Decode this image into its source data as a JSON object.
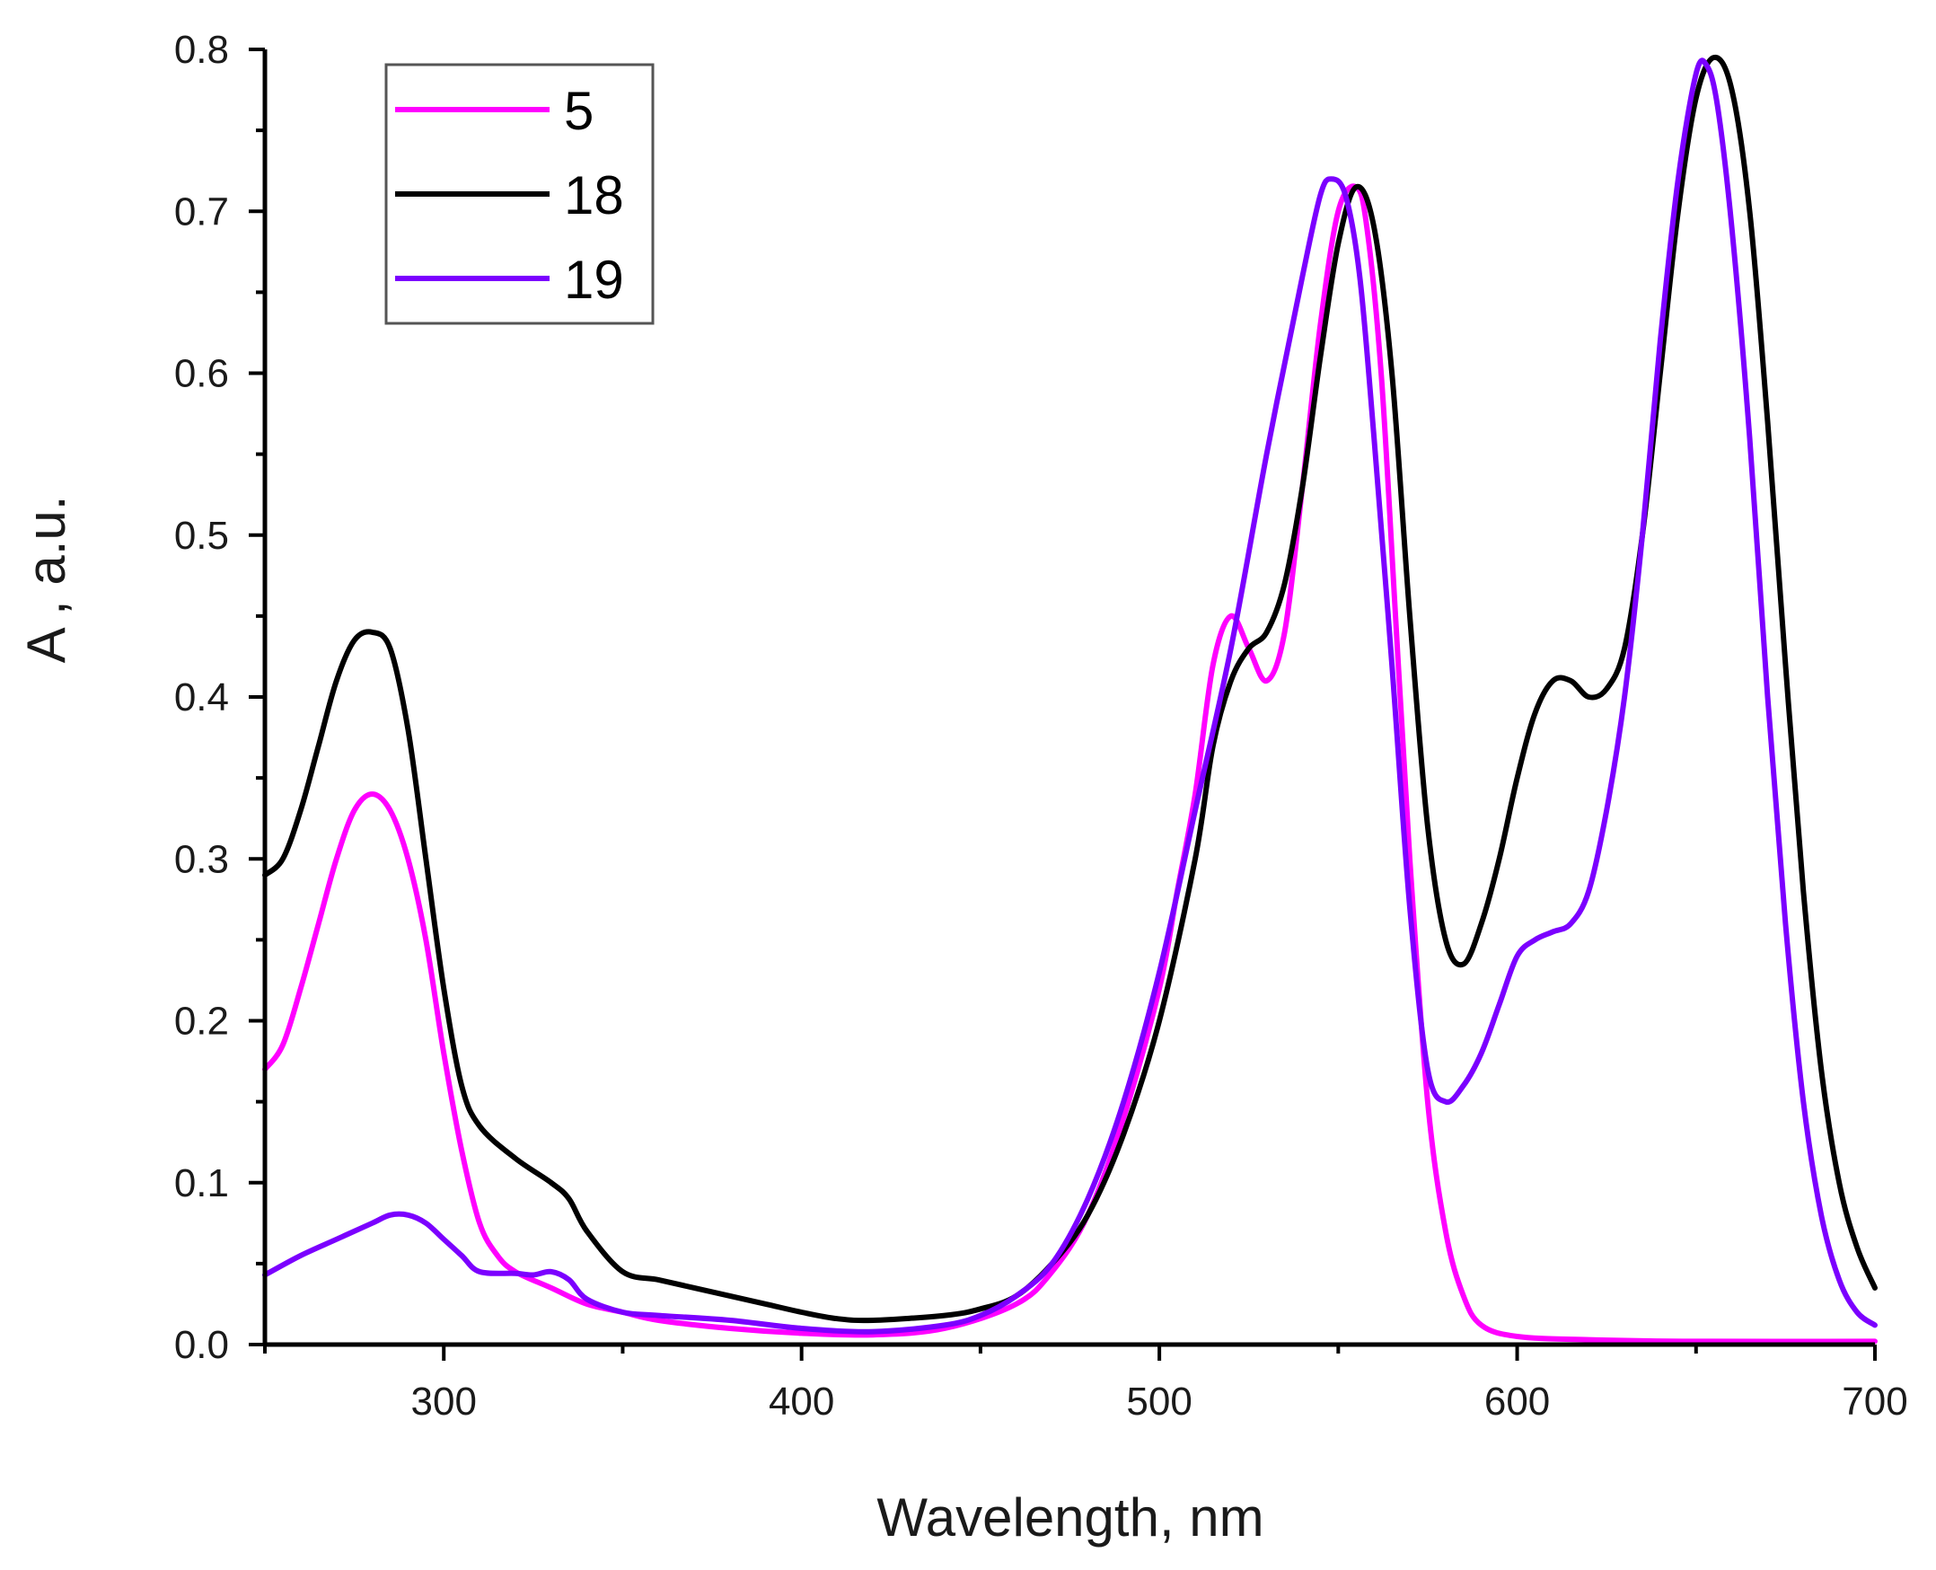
{
  "chart_data": {
    "type": "line",
    "title": "",
    "xlabel": "Wavelength, nm",
    "ylabel": "A , a.u.",
    "xlim": [
      250,
      700
    ],
    "ylim": [
      0,
      0.8
    ],
    "x_ticks": [
      300,
      400,
      500,
      600,
      700
    ],
    "y_ticks": [
      0.0,
      0.1,
      0.2,
      0.3,
      0.4,
      0.5,
      0.6,
      0.7,
      0.8
    ],
    "y_tick_labels": [
      "0.0",
      "0.1",
      "0.2",
      "0.3",
      "0.4",
      "0.5",
      "0.6",
      "0.7",
      "0.8"
    ],
    "legend_position": "top-left",
    "grid": false,
    "series": [
      {
        "name": "5",
        "color": "#ff00ff",
        "points": [
          [
            250,
            0.17
          ],
          [
            255,
            0.185
          ],
          [
            260,
            0.22
          ],
          [
            265,
            0.26
          ],
          [
            270,
            0.3
          ],
          [
            275,
            0.33
          ],
          [
            280,
            0.34
          ],
          [
            285,
            0.33
          ],
          [
            290,
            0.3
          ],
          [
            295,
            0.25
          ],
          [
            300,
            0.18
          ],
          [
            305,
            0.12
          ],
          [
            310,
            0.075
          ],
          [
            315,
            0.055
          ],
          [
            320,
            0.045
          ],
          [
            330,
            0.035
          ],
          [
            340,
            0.025
          ],
          [
            350,
            0.02
          ],
          [
            360,
            0.015
          ],
          [
            380,
            0.01
          ],
          [
            400,
            0.007
          ],
          [
            420,
            0.006
          ],
          [
            440,
            0.01
          ],
          [
            460,
            0.025
          ],
          [
            470,
            0.045
          ],
          [
            480,
            0.08
          ],
          [
            490,
            0.14
          ],
          [
            500,
            0.22
          ],
          [
            505,
            0.28
          ],
          [
            510,
            0.34
          ],
          [
            515,
            0.42
          ],
          [
            520,
            0.45
          ],
          [
            525,
            0.43
          ],
          [
            530,
            0.41
          ],
          [
            535,
            0.44
          ],
          [
            540,
            0.53
          ],
          [
            545,
            0.63
          ],
          [
            550,
            0.7
          ],
          [
            555,
            0.715
          ],
          [
            558,
            0.69
          ],
          [
            562,
            0.6
          ],
          [
            566,
            0.45
          ],
          [
            570,
            0.3
          ],
          [
            575,
            0.15
          ],
          [
            580,
            0.07
          ],
          [
            585,
            0.03
          ],
          [
            590,
            0.012
          ],
          [
            600,
            0.005
          ],
          [
            620,
            0.003
          ],
          [
            650,
            0.002
          ],
          [
            700,
            0.002
          ]
        ]
      },
      {
        "name": "18",
        "color": "#000000",
        "points": [
          [
            250,
            0.29
          ],
          [
            255,
            0.3
          ],
          [
            260,
            0.33
          ],
          [
            265,
            0.37
          ],
          [
            270,
            0.41
          ],
          [
            275,
            0.435
          ],
          [
            280,
            0.44
          ],
          [
            285,
            0.43
          ],
          [
            290,
            0.38
          ],
          [
            295,
            0.3
          ],
          [
            300,
            0.22
          ],
          [
            305,
            0.16
          ],
          [
            310,
            0.135
          ],
          [
            320,
            0.115
          ],
          [
            330,
            0.1
          ],
          [
            335,
            0.09
          ],
          [
            340,
            0.07
          ],
          [
            350,
            0.045
          ],
          [
            360,
            0.04
          ],
          [
            370,
            0.035
          ],
          [
            380,
            0.03
          ],
          [
            390,
            0.025
          ],
          [
            400,
            0.02
          ],
          [
            410,
            0.016
          ],
          [
            420,
            0.015
          ],
          [
            440,
            0.018
          ],
          [
            450,
            0.022
          ],
          [
            460,
            0.03
          ],
          [
            470,
            0.05
          ],
          [
            480,
            0.08
          ],
          [
            490,
            0.13
          ],
          [
            500,
            0.2
          ],
          [
            510,
            0.3
          ],
          [
            515,
            0.37
          ],
          [
            520,
            0.41
          ],
          [
            525,
            0.43
          ],
          [
            530,
            0.44
          ],
          [
            535,
            0.47
          ],
          [
            540,
            0.53
          ],
          [
            545,
            0.61
          ],
          [
            550,
            0.68
          ],
          [
            555,
            0.715
          ],
          [
            560,
            0.69
          ],
          [
            565,
            0.6
          ],
          [
            570,
            0.45
          ],
          [
            575,
            0.32
          ],
          [
            580,
            0.25
          ],
          [
            585,
            0.235
          ],
          [
            590,
            0.26
          ],
          [
            595,
            0.3
          ],
          [
            600,
            0.35
          ],
          [
            605,
            0.39
          ],
          [
            610,
            0.41
          ],
          [
            615,
            0.41
          ],
          [
            620,
            0.4
          ],
          [
            625,
            0.405
          ],
          [
            630,
            0.43
          ],
          [
            635,
            0.5
          ],
          [
            640,
            0.6
          ],
          [
            645,
            0.7
          ],
          [
            650,
            0.77
          ],
          [
            655,
            0.795
          ],
          [
            660,
            0.775
          ],
          [
            665,
            0.7
          ],
          [
            670,
            0.57
          ],
          [
            675,
            0.42
          ],
          [
            680,
            0.28
          ],
          [
            685,
            0.17
          ],
          [
            690,
            0.1
          ],
          [
            695,
            0.06
          ],
          [
            700,
            0.035
          ]
        ]
      },
      {
        "name": "19",
        "color": "#7b00ff",
        "points": [
          [
            250,
            0.043
          ],
          [
            260,
            0.055
          ],
          [
            270,
            0.065
          ],
          [
            280,
            0.075
          ],
          [
            285,
            0.08
          ],
          [
            290,
            0.08
          ],
          [
            295,
            0.075
          ],
          [
            300,
            0.065
          ],
          [
            305,
            0.055
          ],
          [
            310,
            0.045
          ],
          [
            320,
            0.044
          ],
          [
            325,
            0.043
          ],
          [
            330,
            0.045
          ],
          [
            335,
            0.04
          ],
          [
            340,
            0.028
          ],
          [
            350,
            0.02
          ],
          [
            360,
            0.018
          ],
          [
            380,
            0.015
          ],
          [
            400,
            0.01
          ],
          [
            420,
            0.008
          ],
          [
            440,
            0.012
          ],
          [
            450,
            0.018
          ],
          [
            460,
            0.03
          ],
          [
            470,
            0.05
          ],
          [
            480,
            0.09
          ],
          [
            490,
            0.15
          ],
          [
            500,
            0.23
          ],
          [
            510,
            0.33
          ],
          [
            520,
            0.43
          ],
          [
            530,
            0.55
          ],
          [
            540,
            0.66
          ],
          [
            545,
            0.71
          ],
          [
            548,
            0.72
          ],
          [
            552,
            0.71
          ],
          [
            556,
            0.66
          ],
          [
            560,
            0.56
          ],
          [
            565,
            0.42
          ],
          [
            570,
            0.27
          ],
          [
            575,
            0.17
          ],
          [
            580,
            0.15
          ],
          [
            585,
            0.16
          ],
          [
            590,
            0.18
          ],
          [
            595,
            0.21
          ],
          [
            600,
            0.24
          ],
          [
            605,
            0.25
          ],
          [
            610,
            0.255
          ],
          [
            615,
            0.26
          ],
          [
            620,
            0.28
          ],
          [
            625,
            0.33
          ],
          [
            630,
            0.4
          ],
          [
            635,
            0.5
          ],
          [
            640,
            0.62
          ],
          [
            645,
            0.72
          ],
          [
            650,
            0.785
          ],
          [
            653,
            0.79
          ],
          [
            656,
            0.765
          ],
          [
            660,
            0.69
          ],
          [
            665,
            0.56
          ],
          [
            670,
            0.4
          ],
          [
            675,
            0.26
          ],
          [
            680,
            0.15
          ],
          [
            685,
            0.08
          ],
          [
            690,
            0.04
          ],
          [
            695,
            0.02
          ],
          [
            700,
            0.012
          ]
        ]
      }
    ]
  }
}
